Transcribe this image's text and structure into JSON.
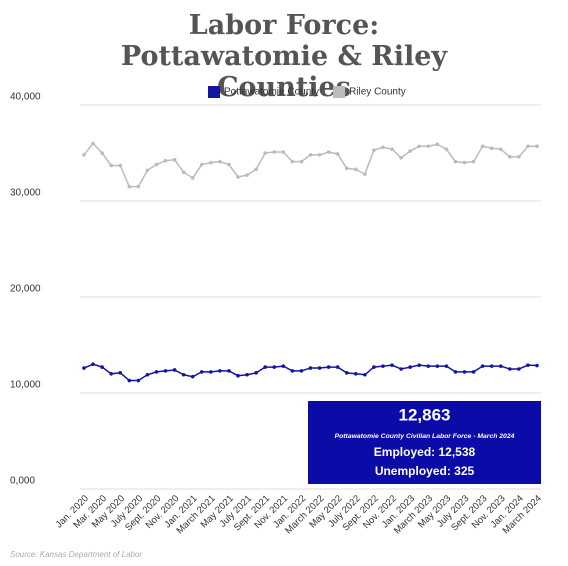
{
  "chart_data": {
    "type": "line",
    "title": "Labor Force: Pottawatomie & Riley Counties",
    "categories": [
      "Jan. 2020",
      null,
      "Mar. 2020",
      null,
      "May 2020",
      null,
      "July 2020",
      null,
      "Sept. 2020",
      null,
      "Nov. 2020",
      null,
      "Jan. 2021",
      null,
      "March 2021",
      null,
      "May 2021",
      null,
      "July 2021",
      null,
      "Sept. 2021",
      null,
      "Nov. 2021",
      null,
      "Jan. 2022",
      null,
      "March 2022",
      null,
      "May 2022",
      null,
      "July 2022",
      null,
      "Sept. 2022",
      null,
      "Nov. 2022",
      null,
      "Jan. 2023",
      null,
      "March 2023",
      null,
      "May 2023",
      null,
      "July 2023",
      null,
      "Sept. 2023",
      null,
      "Nov. 2023",
      null,
      "Jan. 2024",
      null,
      "March 2024"
    ],
    "series": [
      {
        "name": "Pottawatomie County",
        "color": "#1414a3",
        "values": [
          12600,
          13000,
          12700,
          12000,
          12100,
          11300,
          11300,
          11900,
          12200,
          12300,
          12400,
          11900,
          11700,
          12200,
          12200,
          12300,
          12300,
          11800,
          11900,
          12100,
          12700,
          12700,
          12800,
          12300,
          12300,
          12600,
          12600,
          12700,
          12700,
          12100,
          12000,
          11900,
          12700,
          12800,
          12900,
          12500,
          12700,
          12900,
          12800,
          12800,
          12800,
          12200,
          12200,
          12200,
          12800,
          12800,
          12800,
          12500,
          12500,
          12900,
          12863
        ]
      },
      {
        "name": "Riley County",
        "color": "#bbbbbb",
        "values": [
          34800,
          36000,
          35000,
          33700,
          33700,
          31500,
          31500,
          33200,
          33800,
          34200,
          34300,
          33000,
          32400,
          33800,
          34000,
          34100,
          33800,
          32500,
          32700,
          33300,
          35000,
          35100,
          35100,
          34100,
          34100,
          34800,
          34800,
          35100,
          34900,
          33400,
          33300,
          32800,
          35300,
          35600,
          35400,
          34500,
          35200,
          35700,
          35700,
          35900,
          35400,
          34100,
          34000,
          34100,
          35700,
          35500,
          35400,
          34600,
          34600,
          35700,
          35700
        ]
      }
    ],
    "ylim": [
      0,
      40000
    ],
    "yticks": [
      {
        "value": 0,
        "label": "0,000"
      },
      {
        "value": 10000,
        "label": "10,000"
      },
      {
        "value": 20000,
        "label": "20,000"
      },
      {
        "value": 30000,
        "label": "30,000"
      },
      {
        "value": 40000,
        "label": "40,000"
      }
    ],
    "grid": true,
    "legend": "top",
    "annotations": [
      "12,863",
      "Pottawatomie County Civilian Labor Force - March 2024",
      "Employed: 12,538",
      "Unemployed: 325"
    ],
    "source": "Source: Kansas Department of Labor"
  }
}
